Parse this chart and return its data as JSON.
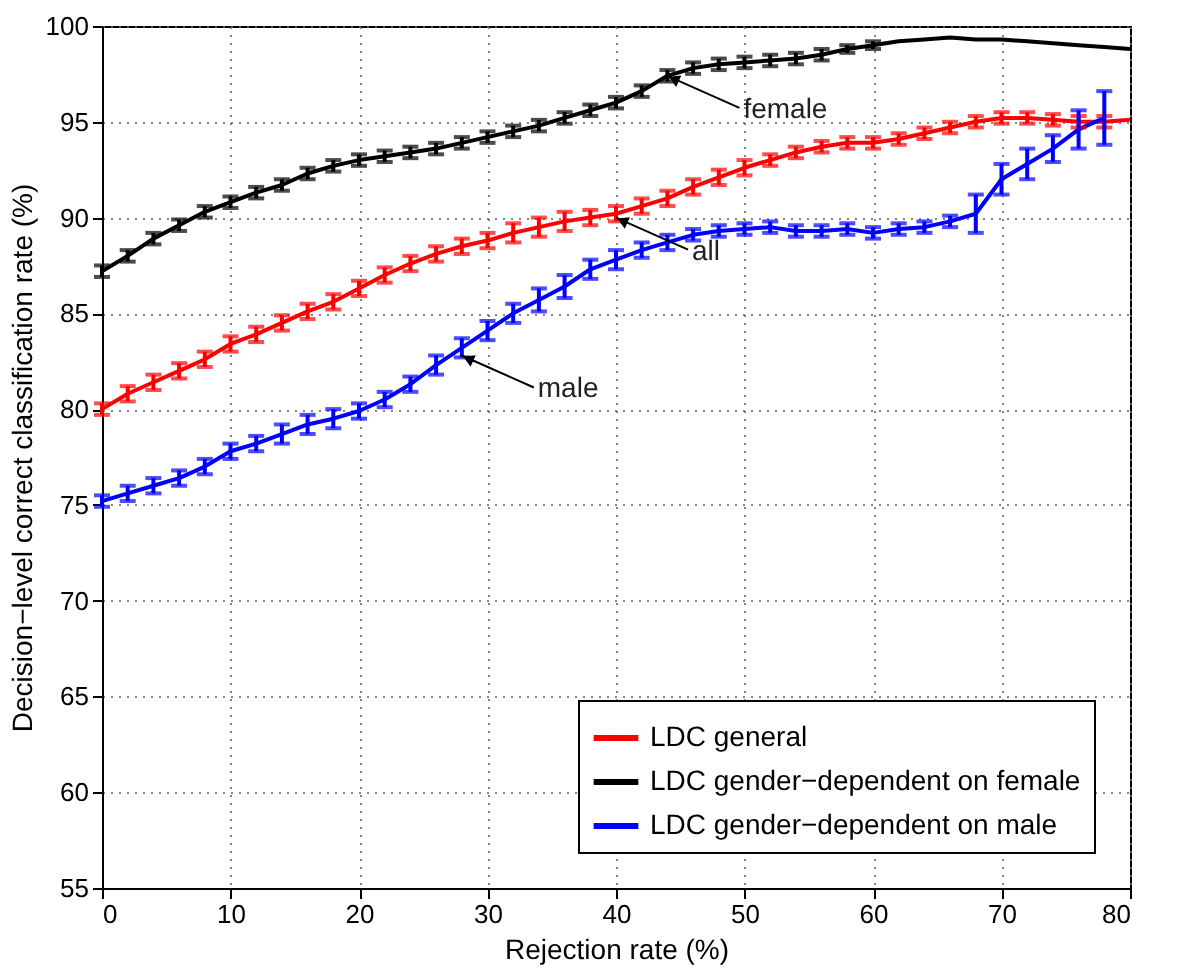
{
  "chart_data": {
    "type": "line",
    "xlabel": "Rejection rate (%)",
    "ylabel": "Decision−level correct classification rate (%)",
    "x": [
      0,
      2,
      4,
      6,
      8,
      10,
      12,
      14,
      16,
      18,
      20,
      22,
      24,
      26,
      28,
      30,
      32,
      34,
      36,
      38,
      40,
      42,
      44,
      46,
      48,
      50,
      52,
      54,
      56,
      58,
      60,
      62,
      64,
      66,
      68,
      70,
      72,
      74,
      76,
      78,
      80
    ],
    "series": [
      {
        "name": "LDC general",
        "color": "#ff0000",
        "values": [
          80.0,
          80.8,
          81.4,
          82.0,
          82.6,
          83.4,
          83.9,
          84.5,
          85.1,
          85.6,
          86.3,
          87.0,
          87.6,
          88.1,
          88.5,
          88.8,
          89.2,
          89.5,
          89.8,
          90.0,
          90.2,
          90.6,
          91.0,
          91.6,
          92.1,
          92.6,
          93.0,
          93.4,
          93.7,
          93.9,
          93.9,
          94.1,
          94.4,
          94.7,
          95.0,
          95.2,
          95.2,
          95.1,
          95.0,
          95.0,
          95.1
        ],
        "errors": [
          0.3,
          0.4,
          0.4,
          0.4,
          0.4,
          0.4,
          0.4,
          0.4,
          0.4,
          0.4,
          0.4,
          0.4,
          0.4,
          0.4,
          0.4,
          0.4,
          0.5,
          0.5,
          0.5,
          0.4,
          0.4,
          0.4,
          0.4,
          0.4,
          0.4,
          0.4,
          0.3,
          0.3,
          0.3,
          0.3,
          0.3,
          0.3,
          0.3,
          0.3,
          0.3,
          0.3,
          0.3,
          0.3,
          0.3,
          0.3,
          null
        ]
      },
      {
        "name": "LDC gender−dependent on female",
        "color": "#000000",
        "values": [
          87.2,
          88.0,
          88.9,
          89.6,
          90.3,
          90.8,
          91.3,
          91.7,
          92.3,
          92.7,
          93.0,
          93.2,
          93.4,
          93.6,
          93.9,
          94.2,
          94.5,
          94.8,
          95.2,
          95.6,
          96.0,
          96.6,
          97.4,
          97.8,
          98.0,
          98.1,
          98.2,
          98.3,
          98.5,
          98.8,
          99.0,
          99.2,
          99.3,
          99.4,
          99.3,
          99.3,
          99.2,
          99.1,
          99.0,
          98.9,
          98.8
        ],
        "errors": [
          0.3,
          0.3,
          0.3,
          0.3,
          0.3,
          0.3,
          0.3,
          0.3,
          0.3,
          0.3,
          0.3,
          0.3,
          0.3,
          0.3,
          0.3,
          0.3,
          0.3,
          0.3,
          0.3,
          0.3,
          0.3,
          0.3,
          0.3,
          0.3,
          0.3,
          0.3,
          0.3,
          0.3,
          0.3,
          0.2,
          0.2,
          null,
          null,
          null,
          null,
          null,
          null,
          null,
          null,
          null,
          null
        ]
      },
      {
        "name": "LDC gender−dependent on male",
        "color": "#0000ff",
        "values": [
          75.2,
          75.6,
          76.0,
          76.4,
          77.0,
          77.8,
          78.2,
          78.7,
          79.2,
          79.5,
          79.9,
          80.5,
          81.3,
          82.3,
          83.2,
          84.1,
          85.0,
          85.7,
          86.4,
          87.3,
          87.8,
          88.3,
          88.7,
          89.1,
          89.3,
          89.4,
          89.5,
          89.3,
          89.3,
          89.4,
          89.2,
          89.4,
          89.5,
          89.8,
          90.2,
          92.0,
          92.8,
          93.6,
          94.6,
          95.2,
          null
        ],
        "errors": [
          0.3,
          0.4,
          0.4,
          0.4,
          0.4,
          0.4,
          0.4,
          0.5,
          0.5,
          0.5,
          0.4,
          0.4,
          0.4,
          0.5,
          0.5,
          0.5,
          0.5,
          0.6,
          0.6,
          0.5,
          0.5,
          0.4,
          0.4,
          0.3,
          0.3,
          0.3,
          0.3,
          0.3,
          0.3,
          0.3,
          0.3,
          0.3,
          0.3,
          0.3,
          1.0,
          0.8,
          0.8,
          0.7,
          1.0,
          1.4,
          null
        ]
      }
    ],
    "xlim": [
      0,
      80
    ],
    "xticks": [
      0,
      10,
      20,
      30,
      40,
      50,
      60,
      70,
      80
    ],
    "ylim": [
      55,
      100
    ],
    "yticks": [
      55,
      60,
      65,
      70,
      75,
      80,
      85,
      90,
      95,
      100
    ],
    "annotations": [
      {
        "text": "female",
        "x": 44,
        "y": 97.4
      },
      {
        "text": "all",
        "x": 40,
        "y": 90.0
      },
      {
        "text": "male",
        "x": 28,
        "y": 82.8
      }
    ],
    "grid": true,
    "legend": "bottom right",
    "marker": "none",
    "line_style": "solid"
  }
}
